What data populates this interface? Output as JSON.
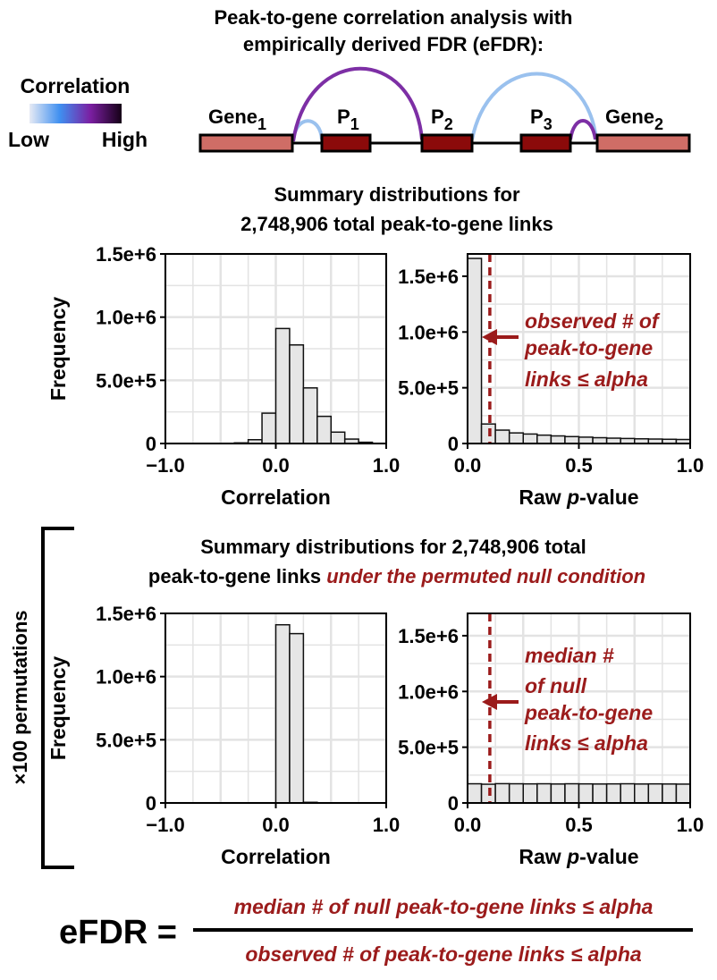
{
  "title": {
    "line1": "Peak-to-gene correlation analysis with",
    "line2": "empirically derived FDR (eFDR):"
  },
  "legend": {
    "label": "Correlation",
    "low": "Low",
    "high": "High",
    "gradient": [
      "#e6eaf4",
      "#3f8ff0",
      "#7b1fa2",
      "#150016"
    ]
  },
  "diagram": {
    "gene1": {
      "base": "Gene",
      "sub": "1"
    },
    "gene2": {
      "base": "Gene",
      "sub": "2"
    },
    "peaks": [
      {
        "base": "P",
        "sub": "1"
      },
      {
        "base": "P",
        "sub": "2"
      },
      {
        "base": "P",
        "sub": "3"
      }
    ],
    "colors": {
      "gene": "#cf6d66",
      "peak": "#8b0a0a",
      "low_corr": "#9ac1ee",
      "high_corr": "#7d2fa5"
    }
  },
  "top_section": {
    "title_line1": "Summary distributions for",
    "title_line2": "2,748,906 total peak-to-gene links"
  },
  "bottom_section": {
    "title_line1": "Summary distributions for 2,748,906 total",
    "title_line2a": "peak-to-gene links ",
    "title_line2b": "under the permuted null condition",
    "side_label": "×100 permutations"
  },
  "annotations": {
    "observed": [
      "observed # of",
      "peak-to-gene",
      "links ≤ alpha"
    ],
    "null": [
      "median #",
      "of null",
      "peak-to-gene",
      "links ≤ alpha"
    ],
    "color": "#9b1b1b"
  },
  "efdr": {
    "lhs": "eFDR =",
    "numerator": "median # of null peak-to-gene links ≤ alpha",
    "denominator": "observed # of peak-to-gene links ≤ alpha"
  },
  "chart_data": [
    {
      "type": "bar",
      "id": "observed-correlation",
      "xlabel": "Correlation",
      "ylabel": "Frequency",
      "xlim": [
        -1.0,
        1.0
      ],
      "ylim": [
        0,
        1500000
      ],
      "xticks": [
        "−1.0",
        "0.0",
        "1.0"
      ],
      "yticks": [
        "0",
        "5.0e+5",
        "1.0e+6",
        "1.5e+6"
      ],
      "bin_start": -1.0,
      "bin_width": 0.125,
      "values": [
        0,
        0,
        0,
        0,
        0,
        5000,
        30000,
        240000,
        910000,
        780000,
        440000,
        215000,
        90000,
        35000,
        10000,
        0
      ]
    },
    {
      "type": "bar",
      "id": "observed-pvalue",
      "xlabel": "Raw p-value",
      "ylabel": "",
      "xlim": [
        0.0,
        1.0
      ],
      "ylim": [
        0,
        1700000
      ],
      "xticks": [
        "0.0",
        "0.5",
        "1.0"
      ],
      "yticks": [
        "0",
        "5.0e+5",
        "1.0e+6",
        "1.5e+6"
      ],
      "alpha_line": 0.1,
      "bin_start": 0.0,
      "bin_width": 0.0625,
      "values": [
        1660000,
        175000,
        120000,
        95000,
        85000,
        75000,
        68000,
        62000,
        57000,
        52000,
        48000,
        45000,
        42000,
        40000,
        38000,
        36000
      ]
    },
    {
      "type": "bar",
      "id": "null-correlation",
      "xlabel": "Correlation",
      "ylabel": "Frequency",
      "xlim": [
        -1.0,
        1.0
      ],
      "ylim": [
        0,
        1500000
      ],
      "xticks": [
        "−1.0",
        "0.0",
        "1.0"
      ],
      "yticks": [
        "0",
        "5.0e+5",
        "1.0e+6",
        "1.5e+6"
      ],
      "bin_start": -1.0,
      "bin_width": 0.125,
      "values": [
        0,
        0,
        0,
        0,
        0,
        0,
        0,
        0,
        1410000,
        1340000,
        5000,
        0,
        0,
        0,
        0,
        0
      ]
    },
    {
      "type": "bar",
      "id": "null-pvalue",
      "xlabel": "Raw p-value",
      "ylabel": "",
      "xlim": [
        0.0,
        1.0
      ],
      "ylim": [
        0,
        1700000
      ],
      "xticks": [
        "0.0",
        "0.5",
        "1.0"
      ],
      "yticks": [
        "0",
        "5.0e+5",
        "1.0e+6",
        "1.5e+6"
      ],
      "alpha_line": 0.1,
      "bin_start": 0.0,
      "bin_width": 0.0625,
      "values": [
        172000,
        168000,
        173000,
        172000,
        171000,
        172000,
        170000,
        172000,
        171000,
        170000,
        171000,
        172000,
        170000,
        171000,
        170000,
        169000
      ]
    }
  ]
}
